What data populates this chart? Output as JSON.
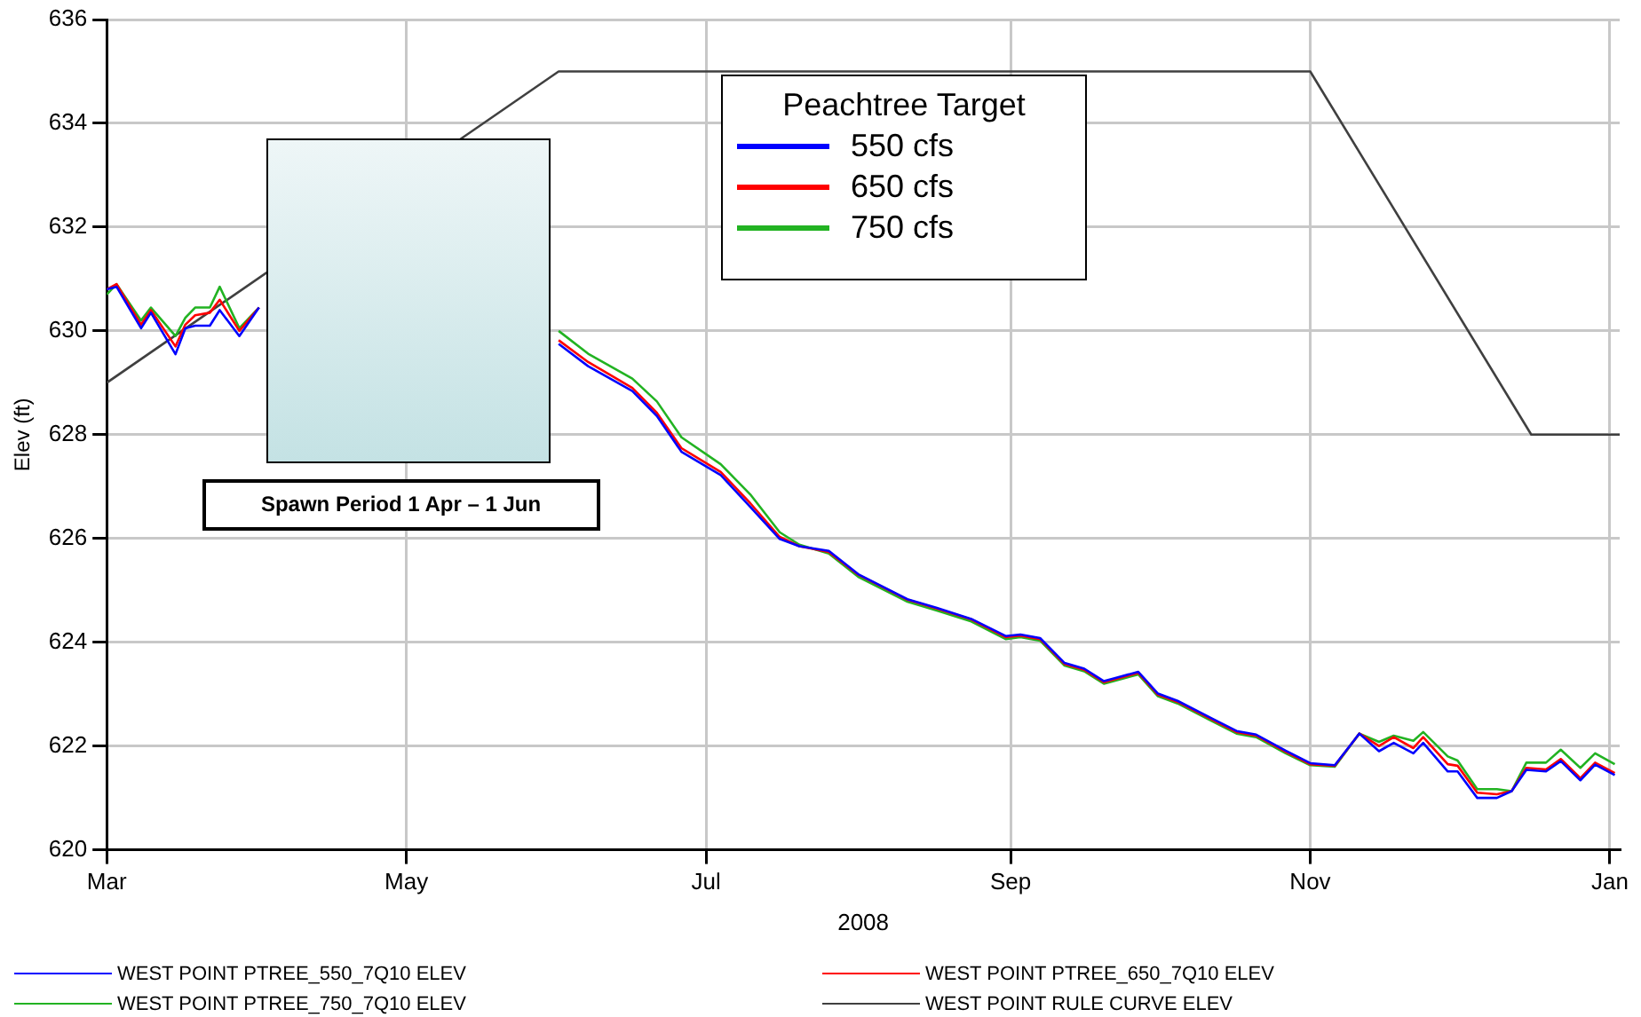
{
  "chart_data": {
    "type": "line",
    "xlabel": "2008",
    "ylabel": "Elev (ft)",
    "x": [
      "2008-03-01",
      "2008-03-03",
      "2008-03-08",
      "2008-03-10",
      "2008-03-15",
      "2008-03-17",
      "2008-03-19",
      "2008-03-22",
      "2008-03-24",
      "2008-03-28",
      "2008-04-01",
      "2008-05-01",
      "2008-06-01",
      "2008-06-07",
      "2008-06-16",
      "2008-06-21",
      "2008-06-26",
      "2008-07-04",
      "2008-07-10",
      "2008-07-16",
      "2008-07-20",
      "2008-07-26",
      "2008-08-01",
      "2008-08-11",
      "2008-08-17",
      "2008-08-24",
      "2008-08-31",
      "2008-09-03",
      "2008-09-07",
      "2008-09-12",
      "2008-09-16",
      "2008-09-20",
      "2008-09-27",
      "2008-10-01",
      "2008-10-05",
      "2008-10-12",
      "2008-10-17",
      "2008-10-21",
      "2008-10-27",
      "2008-11-01",
      "2008-11-06",
      "2008-11-11",
      "2008-11-15",
      "2008-11-18",
      "2008-11-22",
      "2008-11-24",
      "2008-11-29",
      "2008-12-01",
      "2008-12-05",
      "2008-12-09",
      "2008-12-12",
      "2008-12-15",
      "2008-12-19",
      "2008-12-22",
      "2008-12-26",
      "2008-12-29",
      "2009-01-02"
    ],
    "series": [
      {
        "name": "WEST POINT PTREE_550_7Q10 ELEV",
        "color": "#0000ff",
        "values": [
          630.8,
          630.85,
          630.05,
          630.35,
          629.55,
          630.05,
          630.1,
          630.1,
          630.4,
          629.9,
          630.45,
          null,
          629.75,
          629.32,
          628.84,
          628.36,
          627.67,
          627.22,
          626.61,
          625.99,
          625.85,
          625.76,
          625.31,
          624.83,
          624.66,
          624.45,
          624.12,
          624.15,
          624.08,
          623.6,
          623.49,
          623.25,
          623.43,
          623.01,
          622.87,
          622.53,
          622.29,
          622.22,
          621.91,
          621.67,
          621.63,
          622.24,
          621.9,
          622.06,
          621.86,
          622.06,
          621.51,
          621.51,
          621.0,
          621.0,
          621.13,
          621.54,
          621.51,
          621.71,
          621.34,
          621.64,
          621.44
        ]
      },
      {
        "name": "WEST POINT PTREE_650_7Q10 ELEV",
        "color": "#ff0000",
        "values": [
          630.8,
          630.9,
          630.12,
          630.4,
          629.7,
          630.12,
          630.3,
          630.35,
          630.6,
          630.0,
          630.45,
          null,
          629.82,
          629.4,
          628.9,
          628.42,
          627.74,
          627.28,
          626.68,
          626.03,
          625.85,
          625.74,
          625.3,
          624.82,
          624.65,
          624.44,
          624.1,
          624.13,
          624.06,
          623.58,
          623.47,
          623.23,
          623.41,
          622.99,
          622.85,
          622.51,
          622.27,
          622.2,
          621.89,
          621.65,
          621.62,
          622.24,
          622.0,
          622.17,
          621.96,
          622.17,
          621.65,
          621.62,
          621.1,
          621.07,
          621.13,
          621.58,
          621.55,
          621.75,
          621.38,
          621.68,
          621.48
        ]
      },
      {
        "name": "WEST POINT PTREE_750_7Q10 ELEV",
        "color": "#22b322",
        "values": [
          630.7,
          630.9,
          630.2,
          630.45,
          629.9,
          630.25,
          630.45,
          630.45,
          630.85,
          630.05,
          630.45,
          null,
          630.0,
          629.56,
          629.08,
          628.64,
          627.95,
          627.43,
          626.85,
          626.12,
          625.88,
          625.71,
          625.26,
          624.78,
          624.61,
          624.4,
          624.06,
          624.1,
          624.03,
          623.55,
          623.44,
          623.2,
          623.38,
          622.96,
          622.82,
          622.48,
          622.24,
          622.17,
          621.86,
          621.63,
          621.6,
          622.24,
          622.08,
          622.2,
          622.1,
          622.27,
          621.8,
          621.72,
          621.17,
          621.17,
          621.13,
          621.68,
          621.68,
          621.93,
          621.58,
          621.86,
          621.65
        ]
      },
      {
        "name": "WEST POINT RULE CURVE ELEV",
        "color": "#404040",
        "x": [
          "2008-03-01",
          "2008-06-01",
          "2008-11-01",
          "2008-12-16",
          "2009-01-03"
        ],
        "values": [
          629,
          635,
          635,
          628,
          628
        ]
      }
    ],
    "xlim": [
      "2008-03-01",
      "2009-01-03"
    ],
    "xticks": [
      {
        "value": "2008-03-01",
        "label": "Mar"
      },
      {
        "value": "2008-05-01",
        "label": "May"
      },
      {
        "value": "2008-07-01",
        "label": "Jul"
      },
      {
        "value": "2008-09-01",
        "label": "Sep"
      },
      {
        "value": "2008-11-01",
        "label": "Nov"
      },
      {
        "value": "2009-01-01",
        "label": "Jan"
      }
    ],
    "ylim": [
      620,
      636
    ],
    "yticks": [
      620,
      622,
      624,
      626,
      628,
      630,
      632,
      634,
      636
    ],
    "grid": true,
    "legend": "bottom",
    "annotations": [
      "Spawn Period 1 Apr – 1 Jun",
      "Peachtree Target",
      "550 cfs",
      "650 cfs",
      "750 cfs"
    ]
  }
}
